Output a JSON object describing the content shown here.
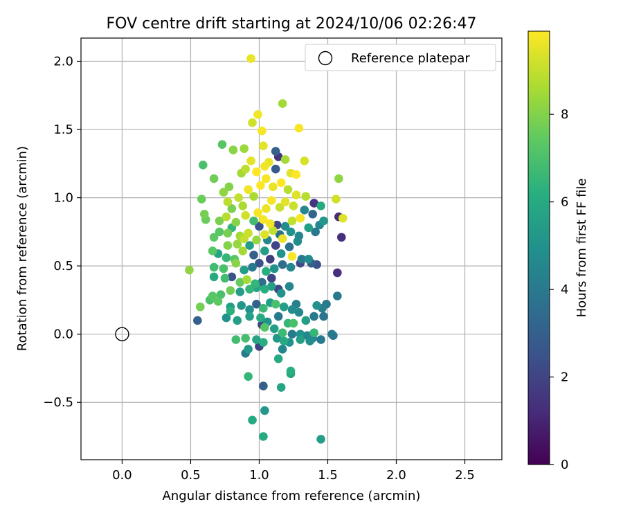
{
  "chart_data": {
    "type": "scatter",
    "title": "FOV centre drift starting at 2024/10/06 02:26:47",
    "xlabel": "Angular distance from reference (arcmin)",
    "ylabel": "Rotation from reference (arcmin)",
    "xlim": [
      -0.3,
      2.77
    ],
    "ylim": [
      -0.92,
      2.17
    ],
    "xticks": [
      0.0,
      0.5,
      1.0,
      1.5,
      2.0,
      2.5
    ],
    "xtick_labels": [
      "0.0",
      "0.5",
      "1.0",
      "1.5",
      "2.0",
      "2.5"
    ],
    "yticks": [
      -0.5,
      0.0,
      0.5,
      1.0,
      1.5,
      2.0
    ],
    "ytick_labels": [
      "−0.5",
      "0.0",
      "0.5",
      "1.0",
      "1.5",
      "2.0"
    ],
    "grid": true,
    "legend": {
      "placement": "top-right",
      "entries": [
        "Reference platepar"
      ]
    },
    "reference_point": {
      "x": 0.0,
      "y": 0.0
    },
    "colorbar": {
      "label": "Hours from first FF file",
      "colormap": "viridis",
      "range": [
        0,
        9.9
      ],
      "ticks": [
        0,
        2,
        4,
        6,
        8
      ],
      "tick_labels": [
        "0",
        "2",
        "4",
        "6",
        "8"
      ]
    },
    "points": [
      [
        0.94,
        2.02,
        9.6
      ],
      [
        1.17,
        1.69,
        8.5
      ],
      [
        0.99,
        1.61,
        9.7
      ],
      [
        0.95,
        1.55,
        9.2
      ],
      [
        1.29,
        1.51,
        9.8
      ],
      [
        1.02,
        1.49,
        9.8
      ],
      [
        1.03,
        1.38,
        9.5
      ],
      [
        0.73,
        1.39,
        7.3
      ],
      [
        0.81,
        1.35,
        8.1
      ],
      [
        0.89,
        1.36,
        8.4
      ],
      [
        1.12,
        1.34,
        3.0
      ],
      [
        1.14,
        1.3,
        1.5
      ],
      [
        1.07,
        1.26,
        9.6
      ],
      [
        1.19,
        1.28,
        8.5
      ],
      [
        1.33,
        1.27,
        9.3
      ],
      [
        1.04,
        1.23,
        9.7
      ],
      [
        0.94,
        1.27,
        9.5
      ],
      [
        0.59,
        1.24,
        7.0
      ],
      [
        0.67,
        1.14,
        7.7
      ],
      [
        0.87,
        1.18,
        8.5
      ],
      [
        0.9,
        1.21,
        8.9
      ],
      [
        0.98,
        1.19,
        9.9
      ],
      [
        1.12,
        1.21,
        2.8
      ],
      [
        1.23,
        1.18,
        9.5
      ],
      [
        1.27,
        1.17,
        9.9
      ],
      [
        1.58,
        1.14,
        8.2
      ],
      [
        0.78,
        1.08,
        8.0
      ],
      [
        0.74,
        1.04,
        8.2
      ],
      [
        0.85,
        1.0,
        9.0
      ],
      [
        0.92,
        1.06,
        9.7
      ],
      [
        0.96,
        1.01,
        8.6
      ],
      [
        1.01,
        1.09,
        9.9
      ],
      [
        1.05,
        1.14,
        9.8
      ],
      [
        1.1,
        1.08,
        9.6
      ],
      [
        1.16,
        1.11,
        9.9
      ],
      [
        1.21,
        1.06,
        8.8
      ],
      [
        1.27,
        1.02,
        9.4
      ],
      [
        1.34,
        1.01,
        8.8
      ],
      [
        1.56,
        0.99,
        9.2
      ],
      [
        1.4,
        0.96,
        1.5
      ],
      [
        1.45,
        0.94,
        6.0
      ],
      [
        0.58,
        0.99,
        7.6
      ],
      [
        0.77,
        0.97,
        8.9
      ],
      [
        0.8,
        0.92,
        7.9
      ],
      [
        0.88,
        0.94,
        8.6
      ],
      [
        0.99,
        0.89,
        9.8
      ],
      [
        1.05,
        0.92,
        9.6
      ],
      [
        1.09,
        0.98,
        9.8
      ],
      [
        1.15,
        0.93,
        9.1
      ],
      [
        1.19,
        0.97,
        9.5
      ],
      [
        1.25,
        0.94,
        9.1
      ],
      [
        1.33,
        0.91,
        4.5
      ],
      [
        1.39,
        0.88,
        3.3
      ],
      [
        1.47,
        0.83,
        5.2
      ],
      [
        1.58,
        0.86,
        1.2
      ],
      [
        1.61,
        0.85,
        9.4
      ],
      [
        0.6,
        0.88,
        7.8
      ],
      [
        0.61,
        0.84,
        7.6
      ],
      [
        0.71,
        0.83,
        7.9
      ],
      [
        0.76,
        0.86,
        8.8
      ],
      [
        0.83,
        0.82,
        8.1
      ],
      [
        0.9,
        0.87,
        9.2
      ],
      [
        0.96,
        0.83,
        6.8
      ],
      [
        1.03,
        0.84,
        9.8
      ],
      [
        1.08,
        0.81,
        9.7
      ],
      [
        1.13,
        0.8,
        2.1
      ],
      [
        1.19,
        0.79,
        4.8
      ],
      [
        1.24,
        0.83,
        9.0
      ],
      [
        1.3,
        0.85,
        9.8
      ],
      [
        1.36,
        0.78,
        5.5
      ],
      [
        1.41,
        0.75,
        4.0
      ],
      [
        1.44,
        0.8,
        4.5
      ],
      [
        1.6,
        0.71,
        1.3
      ],
      [
        0.71,
        0.75,
        7.3
      ],
      [
        0.77,
        0.74,
        7.8
      ],
      [
        0.8,
        0.78,
        6.5
      ],
      [
        0.86,
        0.72,
        8.5
      ],
      [
        0.92,
        0.74,
        9.1
      ],
      [
        1.0,
        0.79,
        2.5
      ],
      [
        1.04,
        0.73,
        9.4
      ],
      [
        1.1,
        0.76,
        9.0
      ],
      [
        1.15,
        0.73,
        3.6
      ],
      [
        1.23,
        0.75,
        5.0
      ],
      [
        1.29,
        0.72,
        4.5
      ],
      [
        0.67,
        0.71,
        7.4
      ],
      [
        0.77,
        0.65,
        8.0
      ],
      [
        0.84,
        0.66,
        8.3
      ],
      [
        0.89,
        0.7,
        9.0
      ],
      [
        0.93,
        0.65,
        5.5
      ],
      [
        0.98,
        0.69,
        8.3
      ],
      [
        1.06,
        0.69,
        4.5
      ],
      [
        1.12,
        0.65,
        2.0
      ],
      [
        1.17,
        0.7,
        9.6
      ],
      [
        1.22,
        0.64,
        3.6
      ],
      [
        1.28,
        0.68,
        4.8
      ],
      [
        0.66,
        0.61,
        7.3
      ],
      [
        0.7,
        0.59,
        5.8
      ],
      [
        0.76,
        0.56,
        6.5
      ],
      [
        0.82,
        0.55,
        7.3
      ],
      [
        0.88,
        0.61,
        8.5
      ],
      [
        0.96,
        0.58,
        3.0
      ],
      [
        1.04,
        0.61,
        5.5
      ],
      [
        1.08,
        0.55,
        1.8
      ],
      [
        1.16,
        0.59,
        5.0
      ],
      [
        1.24,
        0.57,
        9.8
      ],
      [
        1.31,
        0.55,
        4.0
      ],
      [
        1.38,
        0.52,
        3.0
      ],
      [
        1.42,
        0.51,
        2.5
      ],
      [
        1.57,
        0.45,
        1.3
      ],
      [
        0.49,
        0.47,
        8.2
      ],
      [
        0.67,
        0.49,
        6.8
      ],
      [
        0.74,
        0.48,
        7.0
      ],
      [
        0.83,
        0.52,
        8.1
      ],
      [
        0.89,
        0.47,
        5.5
      ],
      [
        0.95,
        0.49,
        4.0
      ],
      [
        1.0,
        0.52,
        2.5
      ],
      [
        1.05,
        0.46,
        6.2
      ],
      [
        1.11,
        0.48,
        5.0
      ],
      [
        1.17,
        0.51,
        3.5
      ],
      [
        1.23,
        0.49,
        4.5
      ],
      [
        1.3,
        0.52,
        2.2
      ],
      [
        1.36,
        0.55,
        4.8
      ],
      [
        0.67,
        0.42,
        6.0
      ],
      [
        0.75,
        0.41,
        6.8
      ],
      [
        0.8,
        0.42,
        2.5
      ],
      [
        0.86,
        0.38,
        7.5
      ],
      [
        0.91,
        0.4,
        8.5
      ],
      [
        0.97,
        0.37,
        6.5
      ],
      [
        1.02,
        0.38,
        3.5
      ],
      [
        1.09,
        0.41,
        2.0
      ],
      [
        1.14,
        0.33,
        2.0
      ],
      [
        0.66,
        0.28,
        7.3
      ],
      [
        0.72,
        0.29,
        7.0
      ],
      [
        0.79,
        0.32,
        7.7
      ],
      [
        0.86,
        0.31,
        5.5
      ],
      [
        0.93,
        0.33,
        6.5
      ],
      [
        0.98,
        0.34,
        5.8
      ],
      [
        1.04,
        0.33,
        6.2
      ],
      [
        1.09,
        0.35,
        5.5
      ],
      [
        1.16,
        0.3,
        5.0
      ],
      [
        1.22,
        0.35,
        4.5
      ],
      [
        1.27,
        0.22,
        4.3
      ],
      [
        0.57,
        0.2,
        7.8
      ],
      [
        0.64,
        0.25,
        7.0
      ],
      [
        0.7,
        0.24,
        7.4
      ],
      [
        0.79,
        0.2,
        5.5
      ],
      [
        0.87,
        0.21,
        5.2
      ],
      [
        0.93,
        0.18,
        5.0
      ],
      [
        0.98,
        0.22,
        3.0
      ],
      [
        1.03,
        0.19,
        6.6
      ],
      [
        1.08,
        0.23,
        5.5
      ],
      [
        1.12,
        0.22,
        7.0
      ],
      [
        1.18,
        0.2,
        5.5
      ],
      [
        1.24,
        0.18,
        4.8
      ],
      [
        1.29,
        0.16,
        4.5
      ],
      [
        1.42,
        0.21,
        5.0
      ],
      [
        1.46,
        0.19,
        4.2
      ],
      [
        1.49,
        0.22,
        4.0
      ],
      [
        1.57,
        0.28,
        4.0
      ],
      [
        0.55,
        0.1,
        3.0
      ],
      [
        0.76,
        0.12,
        5.0
      ],
      [
        0.79,
        0.17,
        6.3
      ],
      [
        0.84,
        0.1,
        5.5
      ],
      [
        0.93,
        0.13,
        5.6
      ],
      [
        1.01,
        0.12,
        6.0
      ],
      [
        1.06,
        0.09,
        5.0
      ],
      [
        1.14,
        0.13,
        4.0
      ],
      [
        1.21,
        0.08,
        6.5
      ],
      [
        1.25,
        0.08,
        7.0
      ],
      [
        1.34,
        0.1,
        5.5
      ],
      [
        1.4,
        0.13,
        4.0
      ],
      [
        1.47,
        0.13,
        3.8
      ],
      [
        1.02,
        0.07,
        2.0
      ],
      [
        1.04,
        0.05,
        7.2
      ],
      [
        1.11,
        0.04,
        5.5
      ],
      [
        1.17,
        0.01,
        6.7
      ],
      [
        1.24,
        0.0,
        4.0
      ],
      [
        1.3,
        0.0,
        5.0
      ],
      [
        1.35,
        -0.01,
        4.5
      ],
      [
        1.4,
        0.01,
        6.5
      ],
      [
        1.53,
        0.0,
        4.0
      ],
      [
        1.54,
        -0.01,
        3.8
      ],
      [
        0.83,
        -0.04,
        6.8
      ],
      [
        0.9,
        -0.03,
        6.9
      ],
      [
        0.98,
        -0.04,
        5.8
      ],
      [
        1.03,
        -0.06,
        6.2
      ],
      [
        1.13,
        -0.03,
        5.2
      ],
      [
        1.18,
        -0.05,
        6.0
      ],
      [
        1.22,
        -0.06,
        5.0
      ],
      [
        1.3,
        -0.04,
        5.5
      ],
      [
        1.37,
        -0.05,
        4.8
      ],
      [
        1.39,
        -0.03,
        4.5
      ],
      [
        1.45,
        -0.04,
        4.0
      ],
      [
        0.92,
        -0.11,
        5.3
      ],
      [
        1.0,
        -0.09,
        2.0
      ],
      [
        1.17,
        -0.11,
        4.5
      ],
      [
        0.9,
        -0.14,
        4.0
      ],
      [
        1.14,
        -0.18,
        6.0
      ],
      [
        1.23,
        -0.27,
        6.2
      ],
      [
        1.23,
        -0.29,
        5.8
      ],
      [
        0.92,
        -0.31,
        6.5
      ],
      [
        1.03,
        -0.38,
        3.0
      ],
      [
        1.16,
        -0.39,
        5.8
      ],
      [
        1.04,
        -0.56,
        5.2
      ],
      [
        0.95,
        -0.63,
        6.0
      ],
      [
        1.03,
        -0.75,
        6.0
      ],
      [
        1.45,
        -0.77,
        5.5
      ]
    ]
  }
}
